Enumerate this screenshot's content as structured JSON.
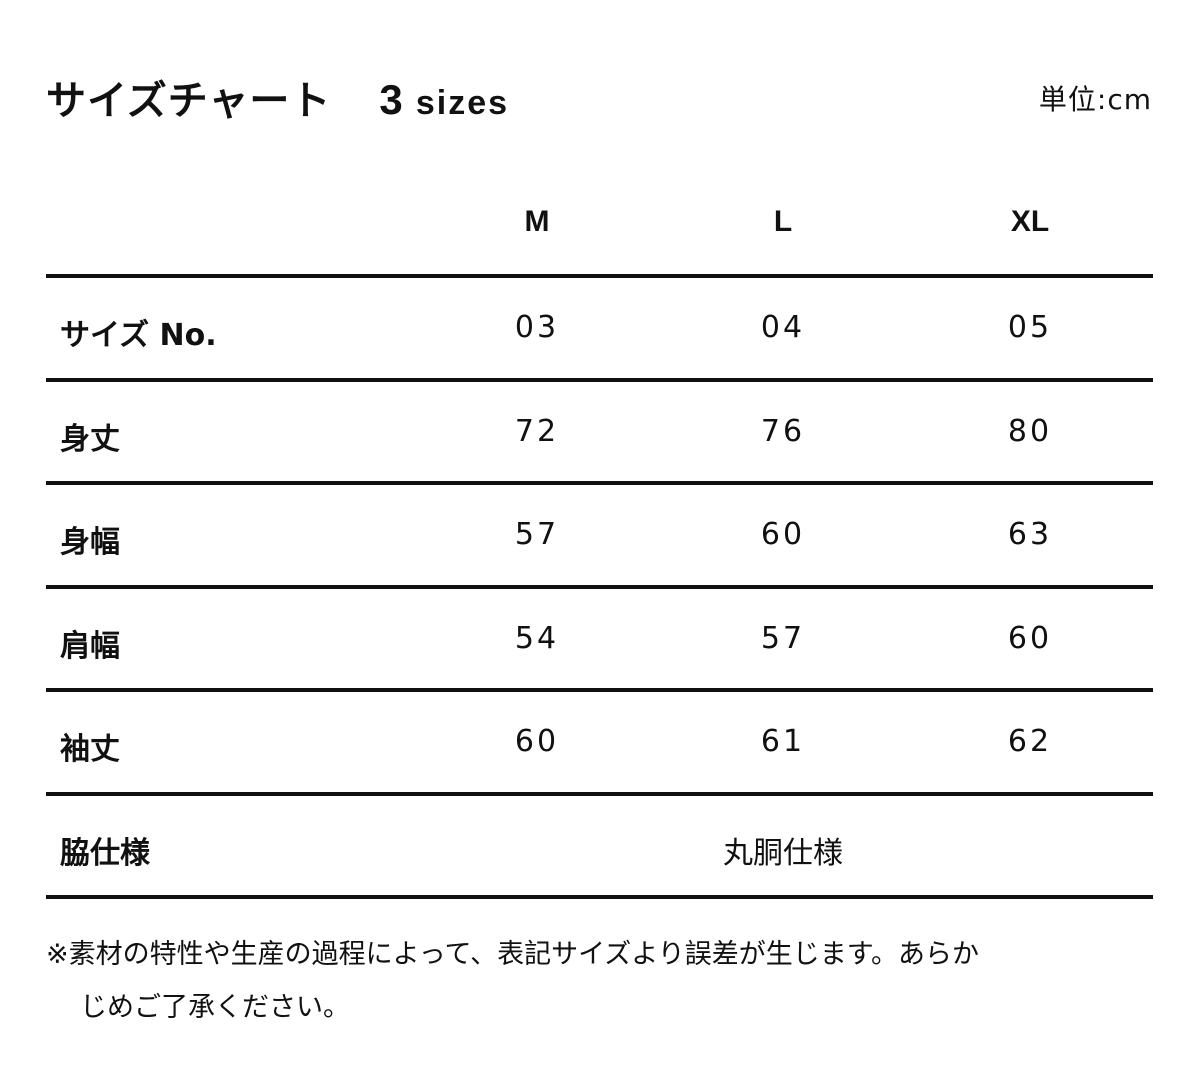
{
  "title": "サイズチャート",
  "subtitle_num": "3",
  "subtitle_word": "sizes",
  "unit": "単位:cm",
  "columns": [
    "M",
    "L",
    "XL"
  ],
  "rows": [
    {
      "label": "サイズ No.",
      "values": [
        "03",
        "04",
        "05"
      ]
    },
    {
      "label": "身丈",
      "values": [
        "72",
        "76",
        "80"
      ]
    },
    {
      "label": "身幅",
      "values": [
        "57",
        "60",
        "63"
      ]
    },
    {
      "label": "肩幅",
      "values": [
        "54",
        "57",
        "60"
      ]
    },
    {
      "label": "袖丈",
      "values": [
        "60",
        "61",
        "62"
      ]
    }
  ],
  "side_spec": {
    "label": "脇仕様",
    "value": "丸胴仕様"
  },
  "note_line1": "※素材の特性や生産の過程によって、表記サイズより誤差が生じます。あらか",
  "note_line2": "じめご了承ください。"
}
